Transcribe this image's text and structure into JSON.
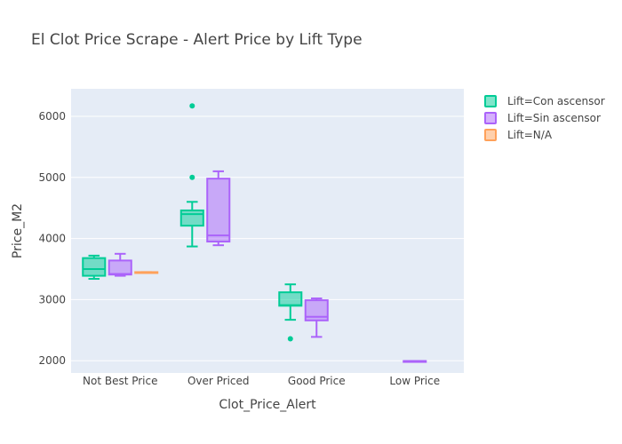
{
  "chart_data": {
    "type": "box",
    "title": "El Clot Price Scrape - Alert Price by Lift Type",
    "xlabel": "Clot_Price_Alert",
    "ylabel": "Price_M2",
    "categories": [
      "Not Best Price",
      "Over Priced",
      "Good Price",
      "Low Price"
    ],
    "yticks": [
      2000,
      3000,
      4000,
      5000,
      6000
    ],
    "ylim": [
      1800,
      6450
    ],
    "grid": true,
    "legend_position": "top-right",
    "series": [
      {
        "name": "Lift=Con ascensor",
        "color": "#00cc96",
        "boxes": [
          {
            "category": "Not Best Price",
            "min": 3340,
            "q1": 3390,
            "median": 3500,
            "q3": 3680,
            "max": 3720,
            "outliers": []
          },
          {
            "category": "Over Priced",
            "min": 3870,
            "q1": 4210,
            "median": 4400,
            "q3": 4460,
            "max": 4600,
            "outliers": [
              5000,
              6170
            ]
          },
          {
            "category": "Good Price",
            "min": 2670,
            "q1": 2900,
            "median": 2910,
            "q3": 3120,
            "max": 3250,
            "outliers": [
              2360
            ]
          }
        ]
      },
      {
        "name": "Lift=Sin ascensor",
        "color": "#ab63fa",
        "boxes": [
          {
            "category": "Not Best Price",
            "min": 3390,
            "q1": 3410,
            "median": 3420,
            "q3": 3640,
            "max": 3750,
            "outliers": []
          },
          {
            "category": "Over Priced",
            "min": 3890,
            "q1": 3950,
            "median": 4050,
            "q3": 4980,
            "max": 5100,
            "outliers": []
          },
          {
            "category": "Good Price",
            "min": 2390,
            "q1": 2660,
            "median": 2720,
            "q3": 2990,
            "max": 3020,
            "outliers": []
          },
          {
            "category": "Low Price",
            "min": 1995,
            "q1": 1995,
            "median": 1995,
            "q3": 1995,
            "max": 1995,
            "outliers": []
          }
        ]
      },
      {
        "name": "Lift=N/A",
        "color": "#ffa15a",
        "boxes": [
          {
            "category": "Not Best Price",
            "min": 3450,
            "q1": 3450,
            "median": 3450,
            "q3": 3450,
            "max": 3450,
            "outliers": []
          }
        ]
      }
    ]
  }
}
